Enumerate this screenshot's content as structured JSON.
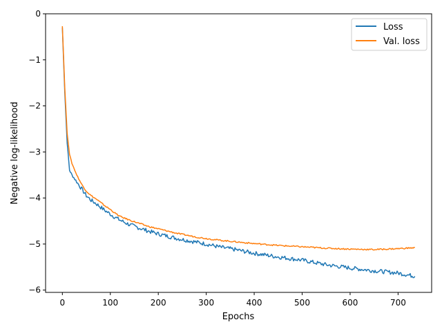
{
  "chart_data": {
    "type": "line",
    "xlabel": "Epochs",
    "ylabel": "Negative log-likelihood",
    "xlim": [
      -35,
      770
    ],
    "ylim": [
      -6.05,
      0
    ],
    "xticks": [
      0,
      100,
      200,
      300,
      400,
      500,
      600,
      700
    ],
    "yticks": [
      0,
      -1,
      -2,
      -3,
      -4,
      -5,
      -6
    ],
    "xtick_labels": [
      "0",
      "100",
      "200",
      "300",
      "400",
      "500",
      "600",
      "700"
    ],
    "ytick_labels": [
      "0",
      "−1",
      "−2",
      "−3",
      "−4",
      "−5",
      "−6"
    ],
    "grid": false,
    "legend_position": "top-right",
    "series": [
      {
        "name": "Loss",
        "color": "#1f77b4",
        "x": [
          0,
          5,
          10,
          15,
          20,
          30,
          40,
          50,
          60,
          70,
          80,
          90,
          100,
          110,
          120,
          140,
          160,
          180,
          200,
          220,
          240,
          260,
          280,
          300,
          330,
          360,
          400,
          450,
          500,
          550,
          600,
          650,
          700,
          735
        ],
        "y": [
          -0.3,
          -1.7,
          -2.8,
          -3.4,
          -3.5,
          -3.65,
          -3.8,
          -3.95,
          -4.05,
          -4.12,
          -4.2,
          -4.28,
          -4.35,
          -4.42,
          -4.48,
          -4.58,
          -4.65,
          -4.72,
          -4.78,
          -4.83,
          -4.88,
          -4.92,
          -4.96,
          -5.0,
          -5.07,
          -5.12,
          -5.2,
          -5.28,
          -5.35,
          -5.45,
          -5.52,
          -5.58,
          -5.63,
          -5.7
        ]
      },
      {
        "name": "Val. loss",
        "color": "#ff7f0e",
        "x": [
          0,
          5,
          10,
          15,
          20,
          30,
          40,
          50,
          60,
          70,
          80,
          90,
          100,
          110,
          120,
          140,
          160,
          180,
          200,
          220,
          240,
          260,
          280,
          300,
          330,
          360,
          400,
          450,
          500,
          550,
          600,
          650,
          700,
          735
        ],
        "y": [
          -0.27,
          -1.6,
          -2.6,
          -3.05,
          -3.25,
          -3.5,
          -3.7,
          -3.85,
          -3.95,
          -4.02,
          -4.1,
          -4.18,
          -4.25,
          -4.33,
          -4.4,
          -4.48,
          -4.55,
          -4.62,
          -4.67,
          -4.72,
          -4.77,
          -4.81,
          -4.85,
          -4.88,
          -4.92,
          -4.95,
          -4.99,
          -5.03,
          -5.06,
          -5.09,
          -5.11,
          -5.12,
          -5.1,
          -5.08
        ]
      }
    ]
  }
}
